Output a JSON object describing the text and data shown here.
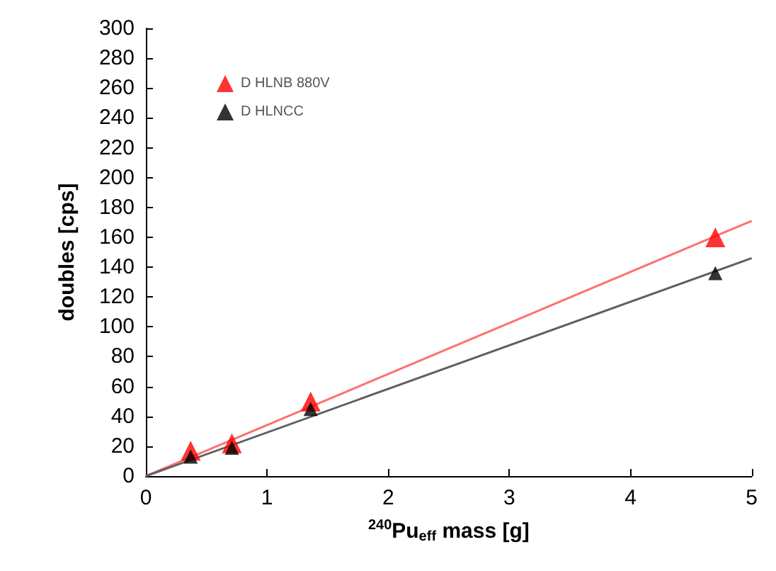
{
  "chart_data": {
    "type": "scatter",
    "xlabel": "$^{240}$Pu$_{eff}$ mass [g]",
    "ylabel": "doubles [cps]",
    "xlim": [
      0,
      5
    ],
    "xticks": [
      0,
      1,
      2,
      3,
      4,
      5
    ],
    "ylim": [
      0,
      300
    ],
    "yticks": [
      0,
      20,
      40,
      60,
      80,
      100,
      120,
      140,
      160,
      180,
      200,
      220,
      240,
      260,
      280,
      300
    ],
    "marker": "triangle",
    "legend": "top left",
    "series": [
      {
        "name": "D HLNB 880V",
        "color": "#ff0000",
        "x": [
          0.37,
          0.71,
          1.36,
          4.7
        ],
        "values": [
          17,
          22,
          50,
          160
        ]
      },
      {
        "name": "D HLNCC",
        "color": "#000000",
        "x": [
          0.37,
          0.71,
          1.36,
          4.7
        ],
        "values": [
          13,
          19,
          45,
          136
        ]
      },
      {
        "type": "line",
        "marker": "none",
        "color": "#ff7070",
        "x": [
          0,
          5
        ],
        "values": [
          0,
          171
        ]
      },
      {
        "type": "line",
        "marker": "none",
        "color": "#606060",
        "x": [
          0,
          5
        ],
        "values": [
          0,
          146
        ]
      }
    ]
  }
}
